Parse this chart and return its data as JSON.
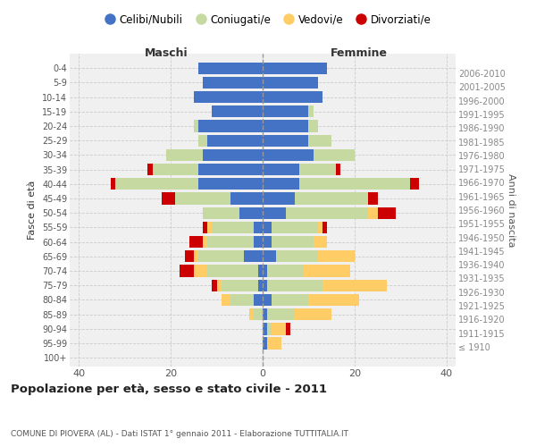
{
  "age_groups": [
    "100+",
    "95-99",
    "90-94",
    "85-89",
    "80-84",
    "75-79",
    "70-74",
    "65-69",
    "60-64",
    "55-59",
    "50-54",
    "45-49",
    "40-44",
    "35-39",
    "30-34",
    "25-29",
    "20-24",
    "15-19",
    "10-14",
    "5-9",
    "0-4"
  ],
  "birth_years": [
    "≤ 1910",
    "1911-1915",
    "1916-1920",
    "1921-1925",
    "1926-1930",
    "1931-1935",
    "1936-1940",
    "1941-1945",
    "1946-1950",
    "1951-1955",
    "1956-1960",
    "1961-1965",
    "1966-1970",
    "1971-1975",
    "1976-1980",
    "1981-1985",
    "1986-1990",
    "1991-1995",
    "1996-2000",
    "2001-2005",
    "2006-2010"
  ],
  "colors": {
    "celibe": "#4472C4",
    "coniugato": "#C5D9A0",
    "vedovo": "#FFCC66",
    "divorziato": "#CC0000"
  },
  "males": {
    "celibe": [
      0,
      0,
      0,
      0,
      2,
      1,
      1,
      4,
      2,
      2,
      5,
      7,
      14,
      14,
      13,
      12,
      14,
      11,
      15,
      13,
      14
    ],
    "coniugato": [
      0,
      0,
      0,
      2,
      5,
      8,
      11,
      10,
      10,
      9,
      8,
      12,
      18,
      10,
      8,
      2,
      1,
      0,
      0,
      0,
      0
    ],
    "vedovo": [
      0,
      0,
      0,
      1,
      2,
      1,
      3,
      1,
      1,
      1,
      0,
      0,
      0,
      0,
      0,
      0,
      0,
      0,
      0,
      0,
      0
    ],
    "divorziato": [
      0,
      0,
      0,
      0,
      0,
      1,
      3,
      2,
      3,
      1,
      0,
      3,
      1,
      1,
      0,
      0,
      0,
      0,
      0,
      0,
      0
    ]
  },
  "females": {
    "celibe": [
      0,
      1,
      1,
      1,
      2,
      1,
      1,
      3,
      2,
      2,
      5,
      7,
      8,
      8,
      11,
      10,
      10,
      10,
      13,
      12,
      14
    ],
    "coniugato": [
      0,
      0,
      1,
      6,
      8,
      12,
      8,
      9,
      9,
      10,
      18,
      16,
      24,
      8,
      9,
      5,
      2,
      1,
      0,
      0,
      0
    ],
    "vedovo": [
      0,
      3,
      3,
      8,
      11,
      14,
      10,
      8,
      3,
      1,
      2,
      0,
      0,
      0,
      0,
      0,
      0,
      0,
      0,
      0,
      0
    ],
    "divorziato": [
      0,
      0,
      1,
      0,
      0,
      0,
      0,
      0,
      0,
      1,
      4,
      2,
      2,
      1,
      0,
      0,
      0,
      0,
      0,
      0,
      0
    ]
  },
  "xlim": [
    -42,
    42
  ],
  "xticks": [
    -40,
    -20,
    0,
    20,
    40
  ],
  "xticklabels": [
    "40",
    "20",
    "0",
    "20",
    "40"
  ],
  "title": "Popolazione per età, sesso e stato civile - 2011",
  "subtitle": "COMUNE DI PIOVERA (AL) - Dati ISTAT 1° gennaio 2011 - Elaborazione TUTTITALIA.IT",
  "ylabel_left": "Fasce di età",
  "ylabel_right": "Anni di nascita",
  "label_maschi": "Maschi",
  "label_femmine": "Femmine",
  "legend_labels": [
    "Celibi/Nubili",
    "Coniugati/e",
    "Vedovi/e",
    "Divorziati/e"
  ],
  "background_color": "#FFFFFF",
  "plot_background": "#F0F0F0",
  "grid_color": "#CCCCCC"
}
